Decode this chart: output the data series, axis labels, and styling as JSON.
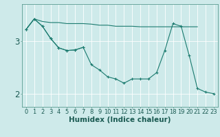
{
  "background_color": "#ceeaea",
  "grid_color": "#ffffff",
  "line_color": "#1a7a6e",
  "xlabel": "Humidex (Indice chaleur)",
  "xlabel_fontsize": 7.5,
  "tick_fontsize": 6.0,
  "ytick_labels": [
    "2",
    "3"
  ],
  "ytick_values": [
    2.0,
    3.0
  ],
  "ylim": [
    1.75,
    3.7
  ],
  "xlim": [
    -0.5,
    23.5
  ],
  "x_values": [
    0,
    1,
    2,
    3,
    4,
    5,
    6,
    7,
    8,
    9,
    10,
    11,
    12,
    13,
    14,
    15,
    16,
    17,
    18,
    19,
    20,
    21,
    22,
    23
  ],
  "line1": [
    3.22,
    3.42,
    3.37,
    3.35,
    3.35,
    3.33,
    3.33,
    3.33,
    3.32,
    3.3,
    3.3,
    3.28,
    3.28,
    3.28,
    3.27,
    3.27,
    3.27,
    3.27,
    3.27,
    3.27,
    3.27,
    3.27,
    null,
    null
  ],
  "line2": [
    3.22,
    3.42,
    3.28,
    3.05,
    2.87,
    2.82,
    2.83,
    2.88,
    2.55,
    2.45,
    2.32,
    2.28,
    2.2,
    2.28,
    2.28,
    2.28,
    2.4,
    2.82,
    3.33,
    3.28,
    2.72,
    2.1,
    2.03,
    2.0
  ],
  "line3": [
    3.22,
    3.42,
    3.28,
    3.05,
    2.87,
    2.82,
    2.83,
    2.88,
    null,
    null,
    null,
    null,
    null,
    null,
    null,
    null,
    null,
    null,
    null,
    null,
    null,
    null,
    null,
    null
  ]
}
